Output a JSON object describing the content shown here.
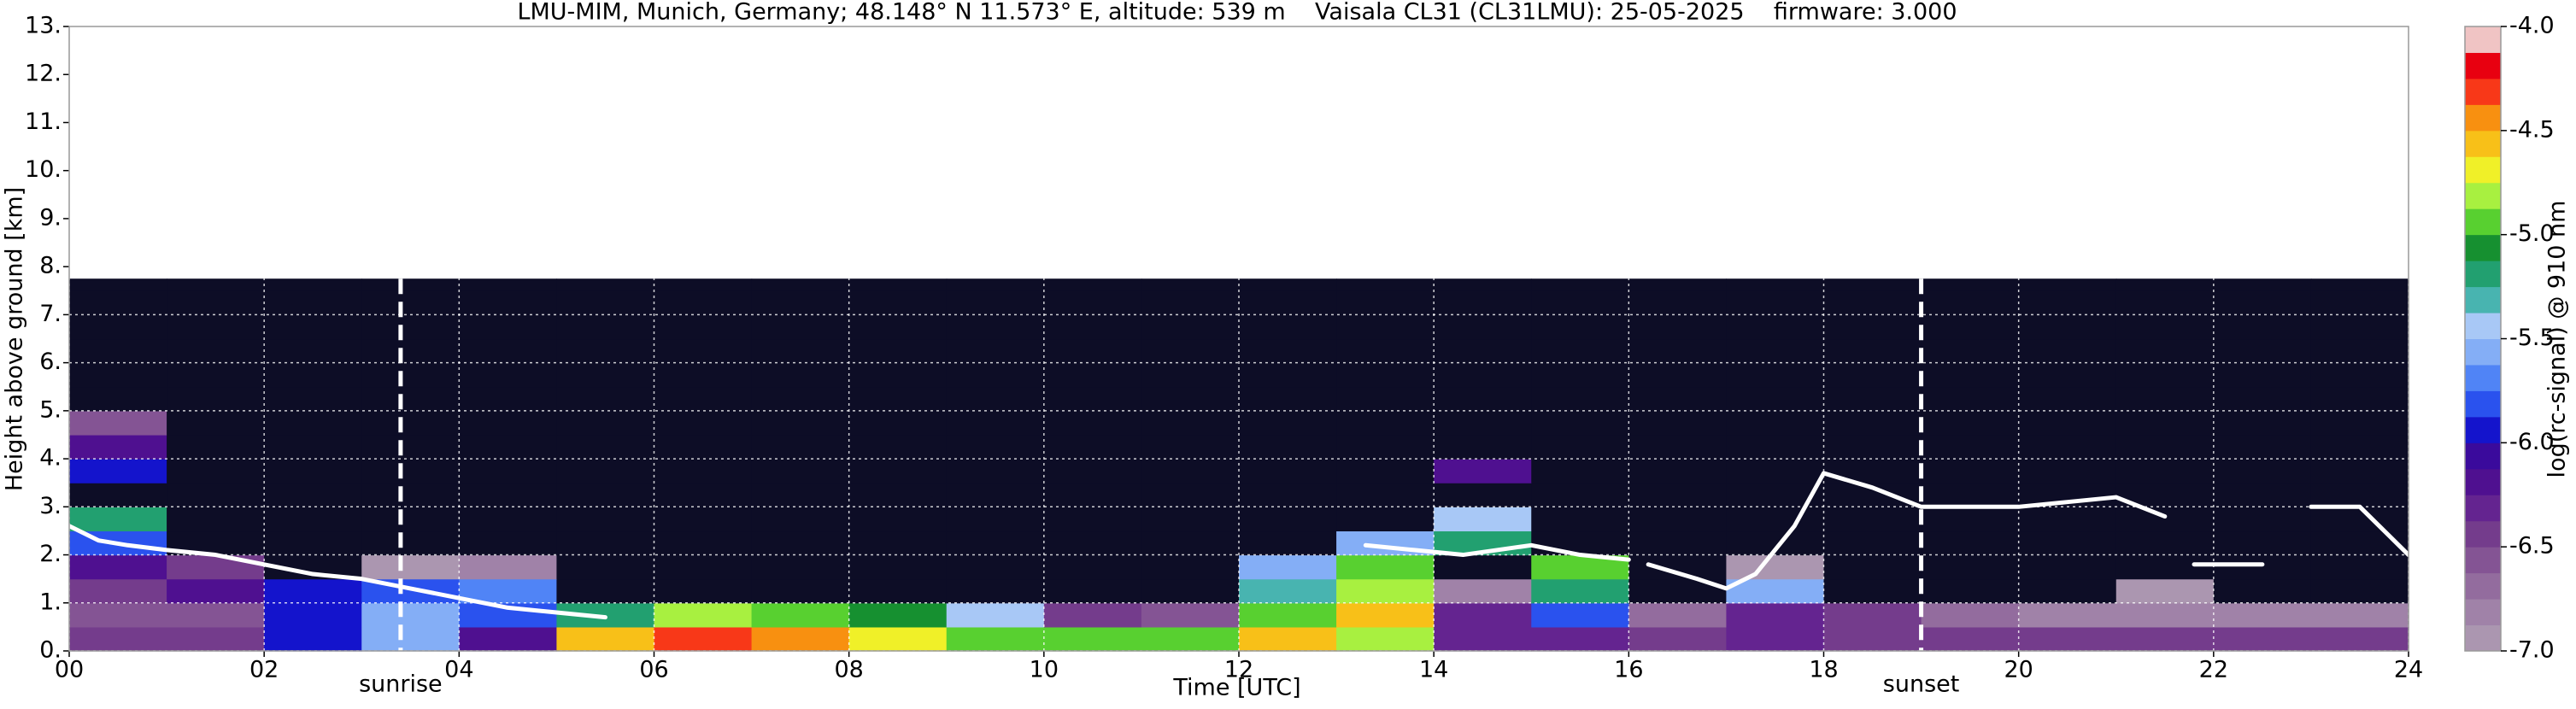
{
  "chart_data": {
    "type": "heatmap",
    "title": "LMU-MIM, Munich, Germany; 48.148° N 11.573° E, altitude: 539 m    Vaisala CL31 (CL31LMU): 25-05-2025    firmware: 3.000",
    "x_label": "Time [UTC]",
    "y_label": "Height above ground [km]",
    "xlim": [
      0,
      24
    ],
    "ylim": [
      0,
      13
    ],
    "xticks": [
      {
        "value": 0,
        "label": "00"
      },
      {
        "value": 2,
        "label": "02"
      },
      {
        "value": 4,
        "label": "04"
      },
      {
        "value": 6,
        "label": "06"
      },
      {
        "value": 8,
        "label": "08"
      },
      10,
      12,
      14,
      16,
      18,
      20,
      22,
      24
    ],
    "yticks": [
      {
        "value": 0,
        "label": "0."
      },
      {
        "value": 1,
        "label": "1."
      },
      {
        "value": 2,
        "label": "2."
      },
      {
        "value": 3,
        "label": "3."
      },
      {
        "value": 4,
        "label": "4."
      },
      {
        "value": 5,
        "label": "5."
      },
      {
        "value": 6,
        "label": "6."
      },
      {
        "value": 7,
        "label": "7."
      },
      {
        "value": 8,
        "label": "8."
      },
      {
        "value": 9,
        "label": "9."
      },
      {
        "value": 10,
        "label": "10."
      },
      {
        "value": 11,
        "label": "11."
      },
      {
        "value": 12,
        "label": "12."
      },
      {
        "value": 13,
        "label": "13."
      }
    ],
    "grid": true,
    "grid_color": "#ffffff",
    "x_edges": [
      0,
      1,
      2,
      3,
      4,
      5,
      6,
      7,
      8,
      9,
      10,
      11,
      12,
      13,
      14,
      15,
      16,
      17,
      18,
      19,
      20,
      21,
      22,
      23,
      24
    ],
    "y_edges": [
      0,
      0.5,
      1,
      1.5,
      2,
      2.5,
      3,
      3.5,
      4,
      4.5,
      5,
      5.5,
      6,
      6.5,
      7,
      7.5,
      7.75
    ],
    "z": [
      [
        -6.4,
        -6.4,
        -6.0,
        -5.6,
        -6.2,
        -4.6,
        -4.3,
        -4.5,
        -4.7,
        -4.9,
        -4.9,
        -4.9,
        -4.6,
        -4.8,
        -6.3,
        -6.3,
        -6.4,
        -6.3,
        -6.4,
        -6.5,
        -6.5,
        -6.5,
        -6.5,
        -6.5
      ],
      [
        -6.6,
        -6.6,
        -5.9,
        -5.6,
        -5.8,
        -5.2,
        -4.8,
        -5.0,
        -5.1,
        -5.4,
        -6.5,
        -6.6,
        -5.0,
        -4.6,
        -6.3,
        -5.8,
        -6.7,
        -6.3,
        -6.5,
        -6.7,
        -6.8,
        -6.8,
        -6.8,
        -6.8
      ],
      [
        -6.4,
        -6.2,
        -6.0,
        -5.8,
        -5.7,
        -7.3,
        -7.3,
        -7.3,
        -7.3,
        -7.3,
        -7.3,
        -7.3,
        -5.3,
        -4.8,
        -6.8,
        -5.2,
        -7.2,
        -5.6,
        -7.3,
        -7.2,
        -7.3,
        -6.9,
        -7.2,
        -7.3
      ],
      [
        -6.2,
        -6.5,
        -7.2,
        -6.9,
        -6.8,
        -7.4,
        -7.4,
        -7.4,
        -7.4,
        -7.4,
        -7.4,
        -7.4,
        -5.6,
        -4.9,
        -7.2,
        -5.0,
        -7.4,
        -7.0,
        -7.3,
        -7.4,
        -7.4,
        -7.4,
        -7.4,
        -7.4
      ],
      [
        -5.8,
        -7.4,
        -7.4,
        -7.4,
        -7.4,
        -7.4,
        -7.4,
        -7.4,
        -7.4,
        -7.4,
        -7.4,
        -7.4,
        -7.4,
        -5.6,
        -5.2,
        -7.4,
        -7.4,
        -7.4,
        -7.4,
        -7.4,
        -7.4,
        -7.4,
        -7.4,
        -7.4
      ],
      [
        -5.2,
        -7.5,
        -7.5,
        -7.5,
        -7.5,
        -7.5,
        -7.5,
        -7.5,
        -7.5,
        -7.5,
        -7.5,
        -7.5,
        -7.5,
        -7.5,
        -5.5,
        -7.5,
        -7.5,
        -7.5,
        -7.5,
        -7.5,
        -7.5,
        -7.5,
        -7.5,
        -7.5
      ],
      [
        -7.5,
        -7.5,
        -7.5,
        -7.5,
        -7.5,
        -7.5,
        -7.5,
        -7.5,
        -7.5,
        -7.5,
        -7.5,
        -7.5,
        -7.5,
        -7.5,
        -7.5,
        -7.5,
        -7.5,
        -7.5,
        -7.5,
        -7.5,
        -7.5,
        -7.5,
        -7.5,
        -7.5
      ],
      [
        -6.0,
        -7.5,
        -7.5,
        -7.5,
        -7.5,
        -7.5,
        -7.5,
        -7.5,
        -7.5,
        -7.5,
        -7.5,
        -7.5,
        -7.5,
        -7.5,
        -6.2,
        -7.5,
        -7.5,
        -7.5,
        -7.5,
        -7.5,
        -7.5,
        -7.5,
        -7.5,
        -7.5
      ],
      [
        -6.2,
        -7.5,
        -7.5,
        -7.5,
        -7.5,
        -7.5,
        -7.5,
        -7.5,
        -7.5,
        -7.5,
        -7.5,
        -7.5,
        -7.5,
        -7.5,
        -7.5,
        -7.5,
        -7.5,
        -7.5,
        -7.5,
        -7.5,
        -7.5,
        -7.5,
        -7.5,
        -7.5
      ],
      [
        -6.6,
        -7.5,
        -7.5,
        -7.5,
        -7.5,
        -7.5,
        -7.5,
        -7.5,
        -7.5,
        -7.5,
        -7.5,
        -7.5,
        -7.5,
        -7.5,
        -7.5,
        -7.5,
        -7.5,
        -7.5,
        -7.5,
        -7.5,
        -7.5,
        -7.5,
        -7.5,
        -7.5
      ],
      [
        -7.5,
        -7.5,
        -7.5,
        -7.5,
        -7.5,
        -7.5,
        -7.5,
        -7.5,
        -7.5,
        -7.5,
        -7.5,
        -7.5,
        -7.5,
        -7.5,
        -7.5,
        -7.5,
        -7.5,
        -7.5,
        -7.5,
        -7.5,
        -7.5,
        -7.5,
        -7.5,
        -7.5
      ],
      [
        -7.5,
        -7.5,
        -7.5,
        -7.5,
        -7.5,
        -7.5,
        -7.5,
        -7.5,
        -7.5,
        -7.5,
        -7.5,
        -7.5,
        -7.5,
        -7.5,
        -7.5,
        -7.5,
        -7.5,
        -7.5,
        -7.5,
        -7.5,
        -7.5,
        -7.5,
        -7.5,
        -7.5
      ],
      [
        -7.5,
        -7.5,
        -7.5,
        -7.5,
        -7.5,
        -7.5,
        -7.5,
        -7.5,
        -7.5,
        -7.5,
        -7.5,
        -7.5,
        -7.5,
        -7.5,
        -7.5,
        -7.5,
        -7.5,
        -7.5,
        -7.5,
        -7.5,
        -7.5,
        -7.5,
        -7.5,
        -7.5
      ],
      [
        -7.5,
        -7.5,
        -7.5,
        -7.5,
        -7.5,
        -7.5,
        -7.5,
        -7.5,
        -7.5,
        -7.5,
        -7.5,
        -7.5,
        -7.5,
        -7.5,
        -7.5,
        -7.5,
        -7.5,
        -7.5,
        -7.5,
        -7.5,
        -7.5,
        -7.5,
        -7.5,
        -7.5
      ],
      [
        -7.5,
        -7.5,
        -7.5,
        -7.5,
        -7.5,
        -7.5,
        -7.5,
        -7.5,
        -7.5,
        -7.5,
        -7.5,
        -7.5,
        -7.5,
        -7.5,
        -7.5,
        -7.5,
        -7.5,
        -7.5,
        -7.5,
        -7.5,
        -7.5,
        -7.5,
        -7.5,
        -7.5
      ],
      [
        -7.5,
        -7.5,
        -7.5,
        -7.5,
        -7.5,
        -7.5,
        -7.5,
        -7.5,
        -7.5,
        -7.5,
        -7.5,
        -7.5,
        -7.5,
        -7.5,
        -7.5,
        -7.5,
        -7.5,
        -7.5,
        -7.5,
        -7.5,
        -7.5,
        -7.5,
        -7.5,
        -7.5
      ]
    ],
    "under_color": "#0d0d26",
    "clim": [
      -7,
      -4
    ],
    "colorscale": [
      "#ab96b0",
      "#a082a8",
      "#936c9e",
      "#845494",
      "#743c8c",
      "#642490",
      "#4f1090",
      "#3a0a9c",
      "#1414cc",
      "#2a52ee",
      "#5084f6",
      "#84aef6",
      "#a8c8f6",
      "#48b4b0",
      "#22a070",
      "#169030",
      "#58d030",
      "#a8f040",
      "#f0f028",
      "#f8c018",
      "#f89010",
      "#f83818",
      "#e80010",
      "#f0c4c4"
    ],
    "colorbar_label": "log(rc-signal) @ 910 nm",
    "colorbar_ticks": [
      {
        "value": -4,
        "label": "-4.0"
      },
      -4.5,
      {
        "value": -5,
        "label": "-5.0"
      },
      -5.5,
      {
        "value": -6,
        "label": "-6.0"
      },
      -6.5,
      {
        "value": -7,
        "label": "-7.0"
      }
    ],
    "layers": {
      "color": "#ffffff",
      "x": [
        0,
        0.3,
        0.6,
        1,
        1.5,
        2,
        2.5,
        3,
        3.5,
        4,
        4.5,
        5,
        5.5,
        5.8,
        13.3,
        13.8,
        14.3,
        15,
        15.5,
        16,
        16.1,
        16.2,
        16.7,
        17,
        17.3,
        17.7,
        18,
        18.5,
        19,
        19.5,
        20,
        20.5,
        21,
        21.5,
        21.6,
        21.8,
        22.5,
        22.7,
        23,
        23.5,
        24
      ],
      "y": [
        2.6,
        2.3,
        2.2,
        2.1,
        2.0,
        1.8,
        1.6,
        1.5,
        1.3,
        1.1,
        0.9,
        0.8,
        0.7,
        null,
        2.2,
        2.1,
        2.0,
        2.2,
        2.0,
        1.9,
        null,
        1.8,
        1.5,
        1.3,
        1.6,
        2.6,
        3.7,
        3.4,
        3.0,
        3.0,
        3.0,
        3.1,
        3.2,
        2.8,
        null,
        1.8,
        1.8,
        null,
        3.0,
        3.0,
        2.0
      ]
    },
    "annotations": [
      {
        "text": "sunrise",
        "x": 3.4
      },
      {
        "text": "sunset",
        "x": 19.0
      }
    ]
  }
}
